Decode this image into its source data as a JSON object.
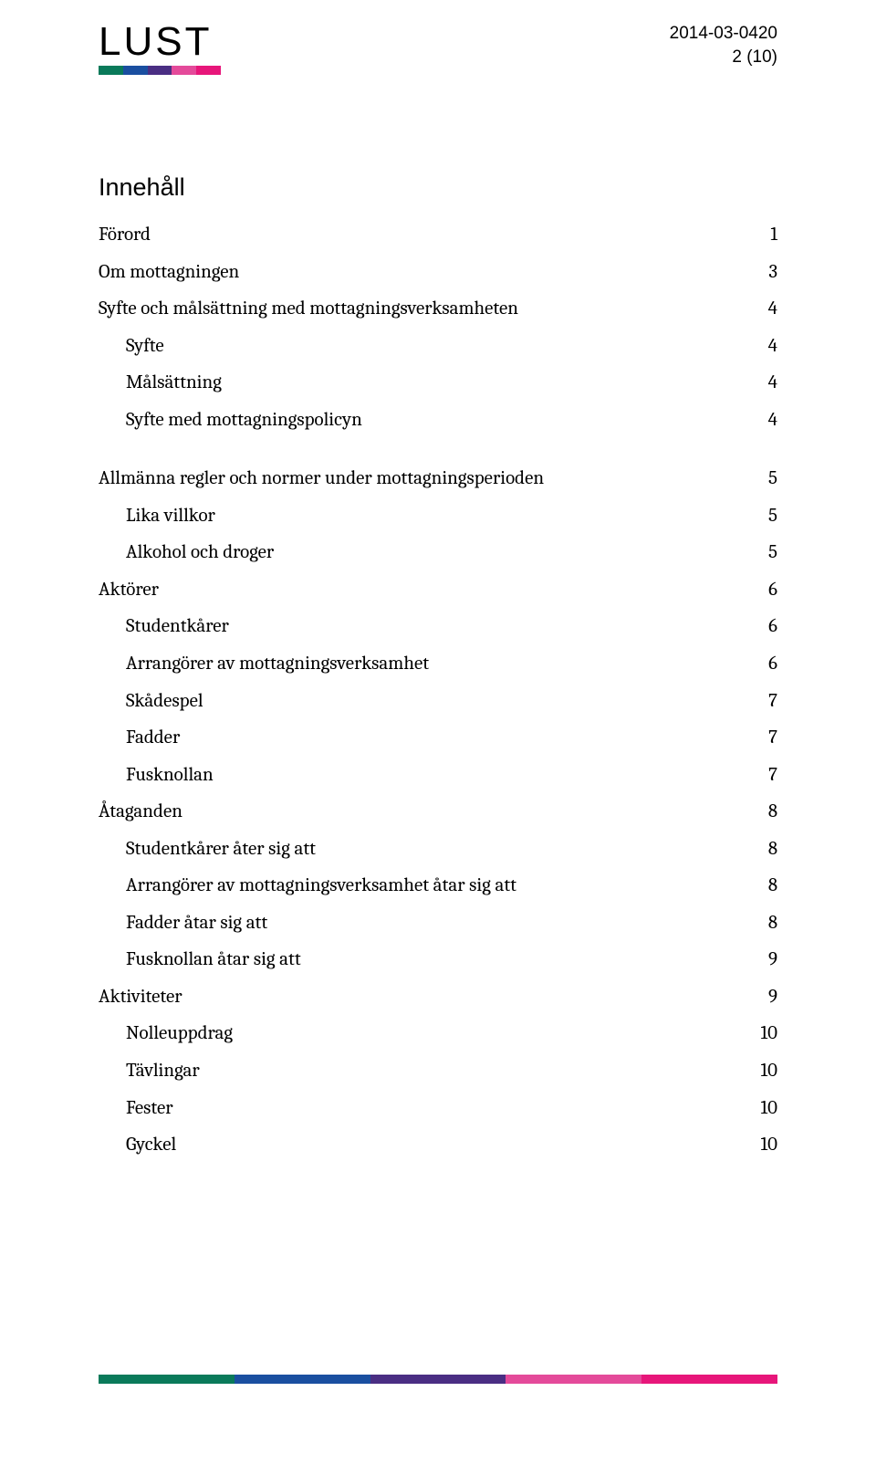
{
  "header": {
    "logo_text": "LUST",
    "date": "2014-03-0420",
    "page_indicator": "2 (10)",
    "logo_colors": [
      "#0a7a5a",
      "#1a4fa0",
      "#4a2e83",
      "#e44a9a",
      "#e7167a"
    ]
  },
  "toc": {
    "title": "Innehåll",
    "entries": [
      {
        "label": "Förord",
        "page": "1",
        "indent": 0
      },
      {
        "label": "Om mottagningen",
        "page": "3",
        "indent": 0
      },
      {
        "label": "Syfte och målsättning med mottagningsverksamheten",
        "page": "4",
        "indent": 0
      },
      {
        "label": "Syfte",
        "page": "4",
        "indent": 1
      },
      {
        "label": "Målsättning",
        "page": "4",
        "indent": 1
      },
      {
        "label": "Syfte med mottagningspolicyn",
        "page": "4",
        "indent": 1
      },
      {
        "label": "__SPACER__",
        "page": "",
        "indent": 0
      },
      {
        "label": "Allmänna regler och normer under mottagningsperioden",
        "page": "5",
        "indent": 0
      },
      {
        "label": "Lika villkor",
        "page": "5",
        "indent": 1
      },
      {
        "label": "Alkohol och droger",
        "page": "5",
        "indent": 1
      },
      {
        "label": "Aktörer",
        "page": "6",
        "indent": 0
      },
      {
        "label": "Studentkårer",
        "page": "6",
        "indent": 1
      },
      {
        "label": "Arrangörer av mottagningsverksamhet",
        "page": "6",
        "indent": 1
      },
      {
        "label": "Skådespel",
        "page": "7",
        "indent": 1
      },
      {
        "label": "Fadder",
        "page": "7",
        "indent": 1
      },
      {
        "label": "Fusknollan",
        "page": "7",
        "indent": 1
      },
      {
        "label": "Åtaganden",
        "page": "8",
        "indent": 0
      },
      {
        "label": "Studentkårer åter sig att",
        "page": "8",
        "indent": 1
      },
      {
        "label": "Arrangörer av mottagningsverksamhet åtar sig att",
        "page": "8",
        "indent": 1
      },
      {
        "label": "Fadder åtar sig att",
        "page": "8",
        "indent": 1
      },
      {
        "label": "Fusknollan åtar sig att",
        "page": "9",
        "indent": 1
      },
      {
        "label": "Aktiviteter",
        "page": "9",
        "indent": 0
      },
      {
        "label": "Nolleuppdrag",
        "page": "10",
        "indent": 1
      },
      {
        "label": "Tävlingar",
        "page": "10",
        "indent": 1
      },
      {
        "label": "Fester",
        "page": "10",
        "indent": 1
      },
      {
        "label": "Gyckel",
        "page": "10",
        "indent": 1
      }
    ]
  },
  "footer": {
    "bar_colors": [
      "#0a7a5a",
      "#1a4fa0",
      "#4a2e83",
      "#e44a9a",
      "#e7167a"
    ]
  }
}
